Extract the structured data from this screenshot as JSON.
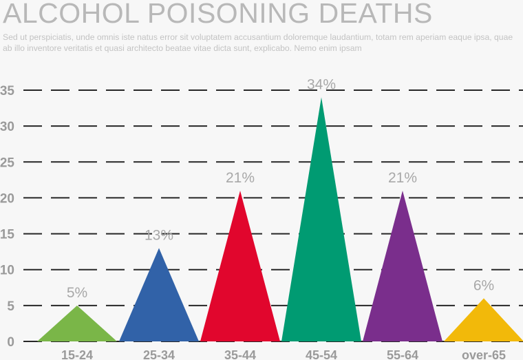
{
  "chart_data": {
    "type": "bar",
    "title": "ALCOHOL POISONING DEATHS",
    "subtitle": "Sed ut perspiciatis, unde omnis iste natus error sit voluptatem accusantium doloremque laudantium, totam rem aperiam eaque ipsa, quae ab illo inventore veritatis et quasi architecto beatae vitae dicta sunt, explicabo. Nemo enim ipsam",
    "categories": [
      "15-24",
      "25-34",
      "35-44",
      "45-54",
      "55-64",
      "over-65"
    ],
    "values": [
      5,
      13,
      21,
      34,
      21,
      6
    ],
    "data_labels": [
      "5%",
      "13%",
      "21%",
      "34%",
      "21%",
      "6%"
    ],
    "colors": [
      "#7ab648",
      "#3162a8",
      "#e1062d",
      "#009b72",
      "#7a2e8c",
      "#f2b90a"
    ],
    "yticks": [
      "0",
      "5",
      "10",
      "15",
      "20",
      "25",
      "30",
      "35"
    ],
    "ylim": [
      0,
      35
    ],
    "grid": true,
    "grid_style": "dashed",
    "mark_shape": "triangle"
  }
}
